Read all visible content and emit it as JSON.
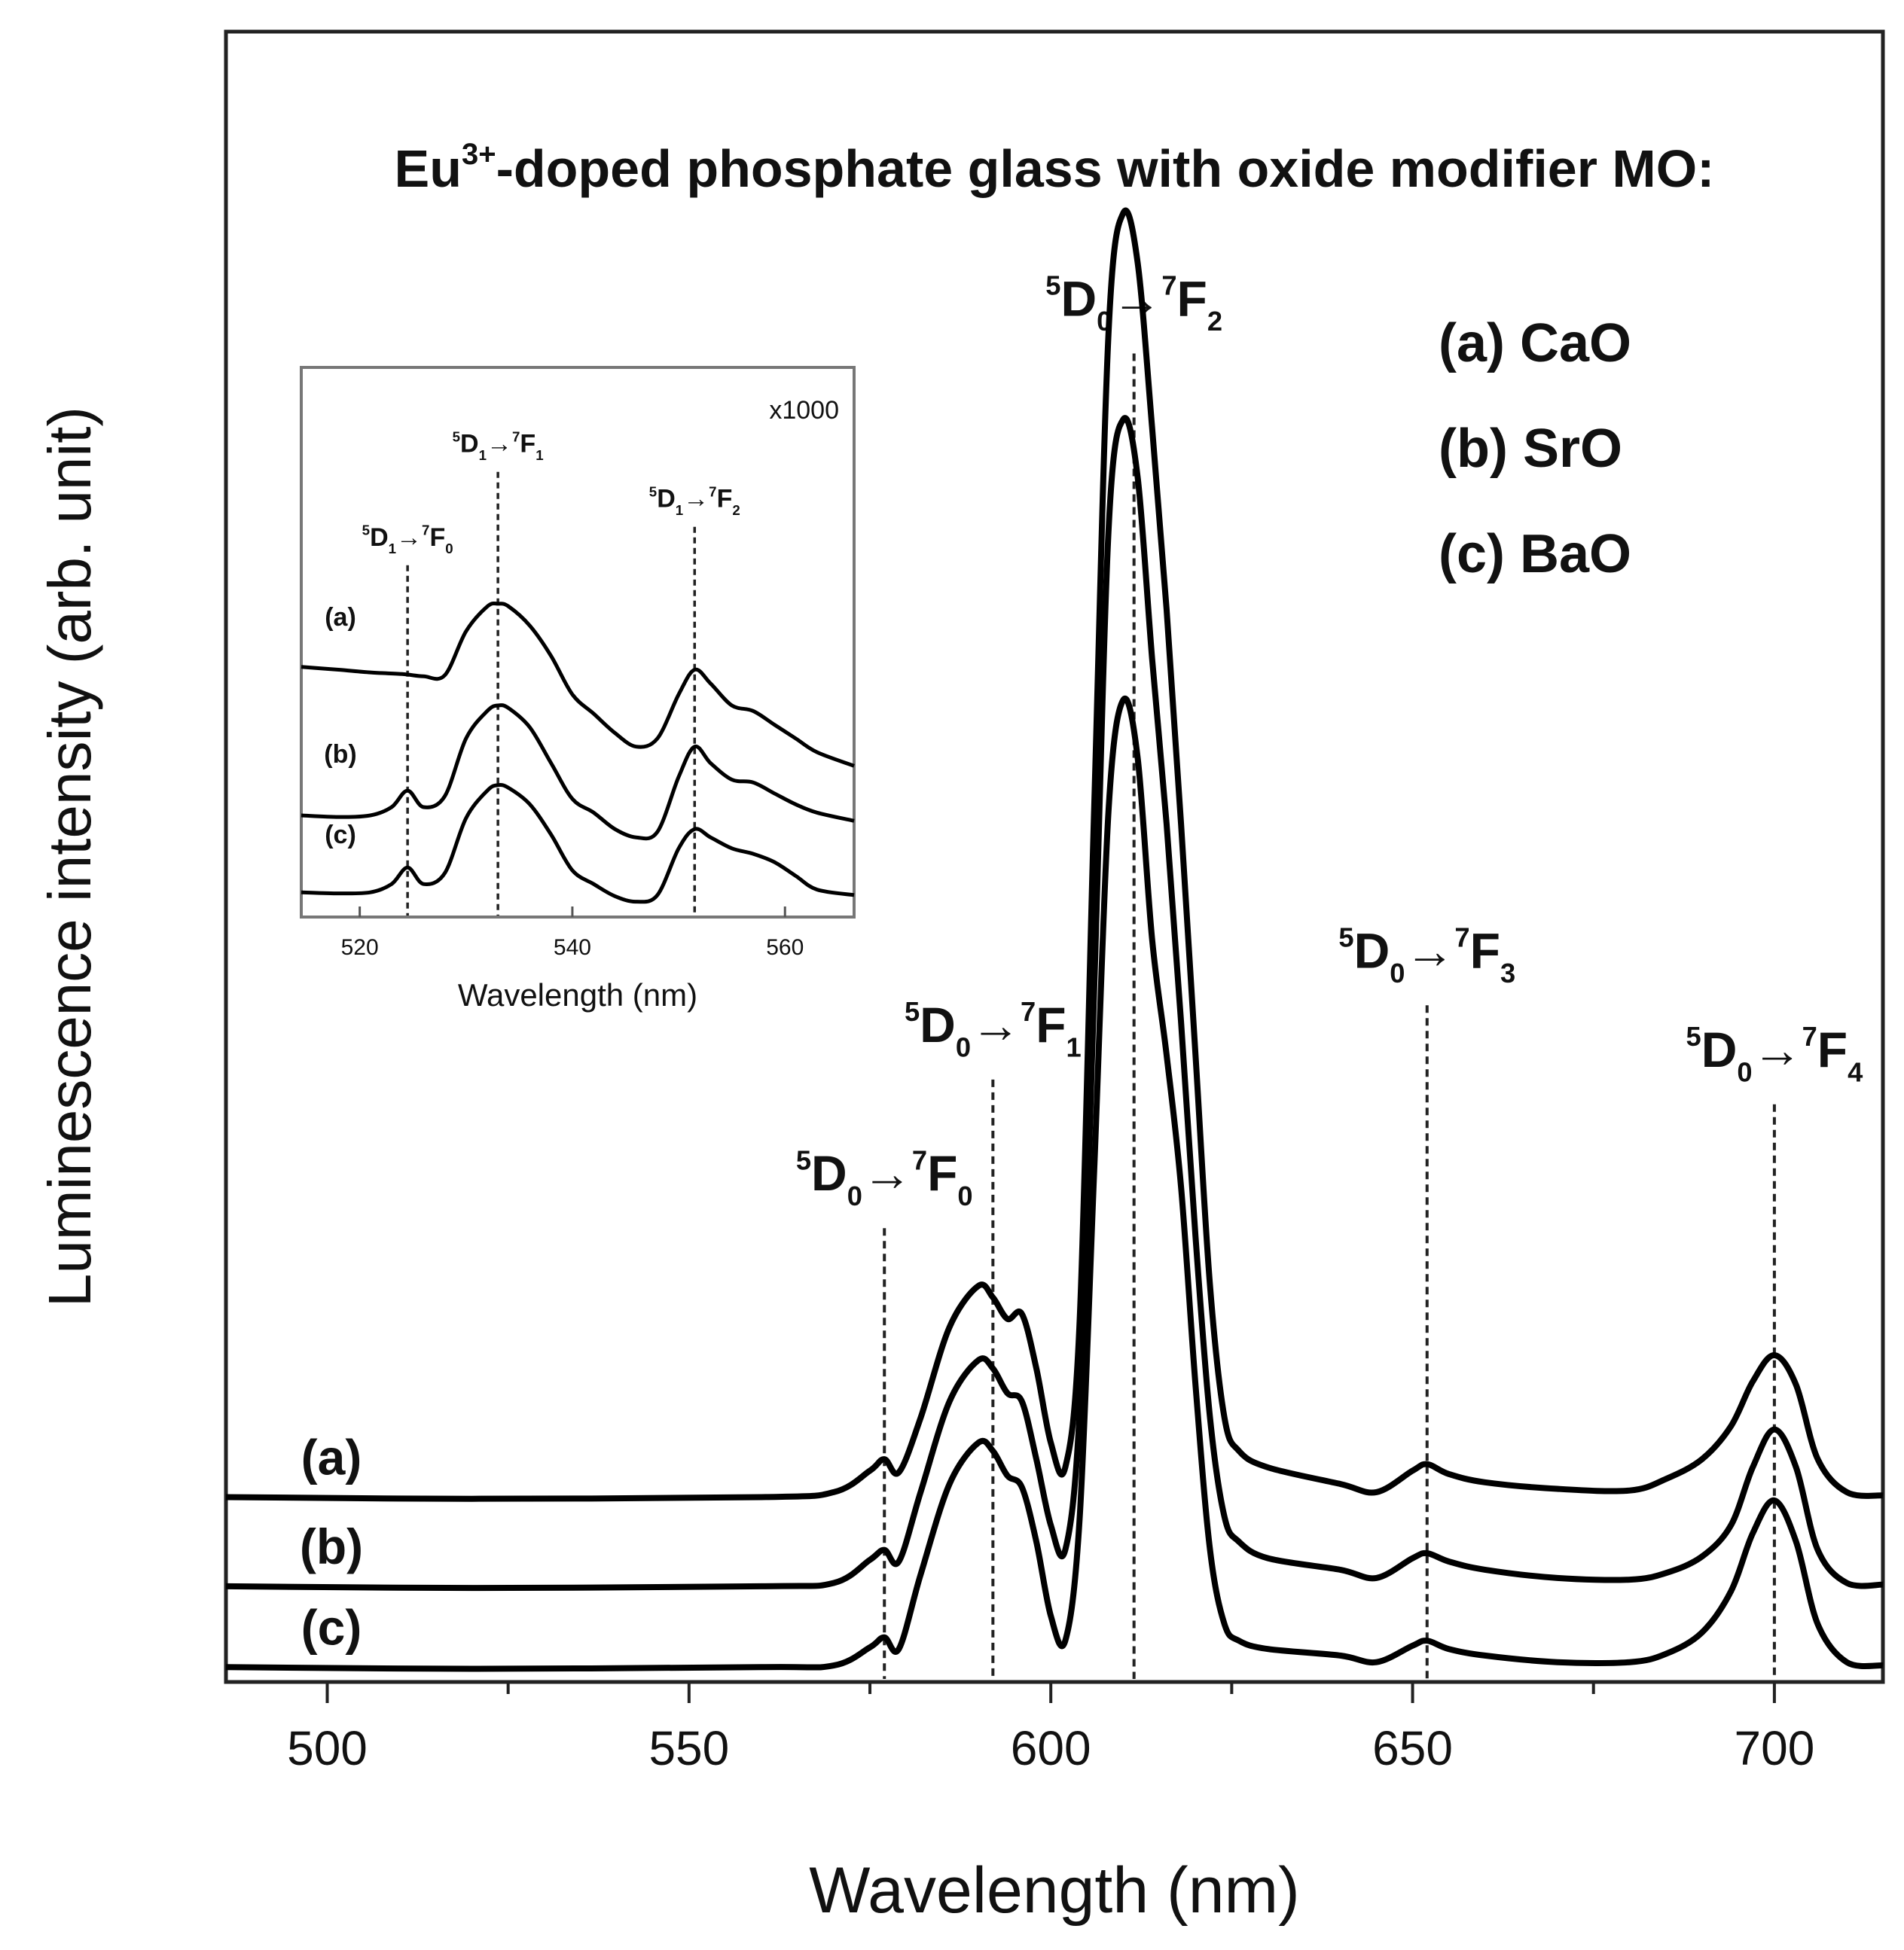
{
  "chart_data": [
    {
      "id": "main",
      "type": "line",
      "title": "Eu",
      "title_sup": "3+",
      "title_rest": "-doped phosphate glass with oxide modifier MO:",
      "xlabel": "Wavelength (nm)",
      "ylabel": "Luminescence intensity (arb. unit)",
      "xlim": [
        486,
        715
      ],
      "ylim": [
        0,
        100
      ],
      "xticks": [
        500,
        550,
        600,
        650,
        700
      ],
      "minor_xticks": [
        525,
        575,
        625,
        675
      ],
      "legend": [
        "(a) CaO",
        "(b) SrO",
        "(c) BaO"
      ],
      "series": [
        {
          "name": "(a)",
          "label": "(a)",
          "x": [
            486,
            520,
            560,
            570,
            575,
            577,
            579,
            582,
            586,
            590,
            592,
            594,
            596,
            598,
            600,
            602,
            604,
            606,
            608,
            610,
            612,
            614,
            616,
            618,
            620,
            622,
            624,
            626,
            630,
            640,
            645,
            650,
            652,
            655,
            660,
            670,
            680,
            685,
            690,
            694,
            697,
            700,
            703,
            706,
            710,
            715
          ],
          "y": [
            11.2,
            11.1,
            11.2,
            11.5,
            12.8,
            13.5,
            12.7,
            16.0,
            21.5,
            24.0,
            23.3,
            22.0,
            22.3,
            19.0,
            14.5,
            13.0,
            22.0,
            53.0,
            82.0,
            89.0,
            86.0,
            76.0,
            65.0,
            52.0,
            38.0,
            24.0,
            16.0,
            14.0,
            13.0,
            12.0,
            11.5,
            12.8,
            13.2,
            12.6,
            12.1,
            11.7,
            11.6,
            12.3,
            13.5,
            15.5,
            18.2,
            19.8,
            18.0,
            13.5,
            11.5,
            11.3
          ]
        },
        {
          "name": "(b)",
          "label": "(b)",
          "x": [
            486,
            520,
            560,
            570,
            575,
            577,
            579,
            582,
            586,
            590,
            592,
            594,
            596,
            598,
            600,
            602,
            604,
            606,
            608,
            610,
            612,
            614,
            616,
            618,
            620,
            622,
            624,
            626,
            630,
            640,
            645,
            650,
            652,
            655,
            660,
            670,
            680,
            685,
            690,
            694,
            697,
            700,
            703,
            706,
            710,
            715
          ],
          "y": [
            5.8,
            5.7,
            5.8,
            6.0,
            7.4,
            8.0,
            7.3,
            11.5,
            17.0,
            19.5,
            19.0,
            17.5,
            17.0,
            13.5,
            9.5,
            8.0,
            16.5,
            42.0,
            70.0,
            76.5,
            73.0,
            62.0,
            52.0,
            40.0,
            27.0,
            16.0,
            10.0,
            8.5,
            7.5,
            6.8,
            6.3,
            7.5,
            7.8,
            7.3,
            6.8,
            6.3,
            6.2,
            6.6,
            7.6,
            9.5,
            13.0,
            15.3,
            13.0,
            8.0,
            6.0,
            5.9
          ]
        },
        {
          "name": "(c)",
          "label": "(c)",
          "x": [
            486,
            520,
            560,
            570,
            575,
            577,
            579,
            582,
            586,
            590,
            592,
            594,
            596,
            598,
            600,
            602,
            604,
            606,
            608,
            610,
            612,
            614,
            616,
            618,
            620,
            622,
            624,
            626,
            630,
            640,
            645,
            650,
            652,
            655,
            660,
            670,
            680,
            685,
            690,
            694,
            697,
            700,
            703,
            706,
            710,
            715
          ],
          "y": [
            0.9,
            0.8,
            0.9,
            1.0,
            2.1,
            2.7,
            2.0,
            6.5,
            12.0,
            14.5,
            14.0,
            12.5,
            11.8,
            8.5,
            4.0,
            2.5,
            10.0,
            31.0,
            53.0,
            59.5,
            56.0,
            45.0,
            38.0,
            30.0,
            18.0,
            8.0,
            3.5,
            2.5,
            2.0,
            1.6,
            1.2,
            2.2,
            2.5,
            2.0,
            1.6,
            1.2,
            1.2,
            1.7,
            3.0,
            5.5,
            9.0,
            11.0,
            8.5,
            3.5,
            1.2,
            1.0
          ]
        }
      ],
      "annotations": [
        {
          "x": 577,
          "y_top": 27.5,
          "pre": "5",
          "D": "D",
          "dsub": "0",
          "arrow": "→",
          "post": "7",
          "F": "F",
          "fsub": "0"
        },
        {
          "x": 592,
          "y_top": 36.5,
          "pre": "5",
          "D": "D",
          "dsub": "0",
          "arrow": "→",
          "post": "7",
          "F": "F",
          "fsub": "1"
        },
        {
          "x": 611.5,
          "y_top": 80.5,
          "pre": "5",
          "D": "D",
          "dsub": "0",
          "arrow": "→",
          "post": "7",
          "F": "F",
          "fsub": "2"
        },
        {
          "x": 652,
          "y_top": 41.0,
          "pre": "5",
          "D": "D",
          "dsub": "0",
          "arrow": "→",
          "post": "7",
          "F": "F",
          "fsub": "3"
        },
        {
          "x": 700,
          "y_top": 35.0,
          "pre": "5",
          "D": "D",
          "dsub": "0",
          "arrow": "→",
          "post": "7",
          "F": "F",
          "fsub": "4"
        }
      ]
    },
    {
      "id": "inset",
      "type": "line",
      "xlabel": "Wavelength (nm)",
      "xlim": [
        514.5,
        566.5
      ],
      "ylim": [
        0,
        100
      ],
      "xticks": [
        520,
        540,
        560
      ],
      "scale_note": "x1000",
      "series": [
        {
          "name": "(a)",
          "label": "(a)",
          "x": [
            514.5,
            518,
            521,
            524,
            526,
            528,
            530,
            532,
            533,
            534,
            536,
            538,
            540,
            542,
            544,
            546,
            548,
            550,
            551.5,
            553,
            555,
            557,
            559,
            561,
            563,
            566.5
          ],
          "y": [
            45.5,
            45.0,
            44.5,
            44.2,
            43.8,
            44.0,
            52.0,
            56.5,
            57.0,
            56.5,
            53.0,
            47.5,
            40.5,
            37.0,
            33.5,
            31.0,
            32.5,
            40.5,
            45.0,
            42.5,
            38.5,
            37.5,
            35.0,
            32.5,
            30.0,
            27.5
          ]
        },
        {
          "name": "(b)",
          "label": "(b)",
          "x": [
            514.5,
            518,
            521,
            523,
            524.5,
            526,
            528,
            530,
            532,
            533,
            534,
            536,
            538,
            540,
            542,
            544,
            546,
            548,
            550,
            551.5,
            553,
            555,
            557,
            559,
            561,
            563,
            566.5
          ],
          "y": [
            18.5,
            18.2,
            18.5,
            20.0,
            23.0,
            20.0,
            22.0,
            32.5,
            37.5,
            38.5,
            38.0,
            34.5,
            28.0,
            21.5,
            19.0,
            16.0,
            14.5,
            15.5,
            25.5,
            31.0,
            28.0,
            25.0,
            24.5,
            22.5,
            20.5,
            19.0,
            17.5
          ]
        },
        {
          "name": "(c)",
          "label": "(c)",
          "x": [
            514.5,
            518,
            521,
            523,
            524.5,
            526,
            528,
            530,
            532,
            533,
            534,
            536,
            538,
            540,
            542,
            544,
            546,
            548,
            550,
            551.5,
            553,
            555,
            557,
            559,
            561,
            563,
            566.5
          ],
          "y": [
            4.5,
            4.3,
            4.5,
            6.0,
            9.0,
            6.0,
            8.0,
            18.0,
            23.0,
            24.0,
            23.5,
            20.5,
            15.0,
            8.5,
            6.0,
            3.8,
            2.8,
            4.0,
            12.5,
            16.0,
            14.5,
            12.5,
            11.5,
            10.0,
            7.5,
            5.0,
            4.0
          ]
        }
      ],
      "annotations": [
        {
          "x": 524.5,
          "y_top": 64.0,
          "pre": "5",
          "D": "D",
          "dsub": "1",
          "arrow": "→",
          "post": "7",
          "F": "F",
          "fsub": "0"
        },
        {
          "x": 533,
          "y_top": 81.0,
          "pre": "5",
          "D": "D",
          "dsub": "1",
          "arrow": "→",
          "post": "7",
          "F": "F",
          "fsub": "1"
        },
        {
          "x": 551.5,
          "y_top": 71.0,
          "pre": "5",
          "D": "D",
          "dsub": "1",
          "arrow": "→",
          "post": "7",
          "F": "F",
          "fsub": "2"
        }
      ]
    }
  ]
}
